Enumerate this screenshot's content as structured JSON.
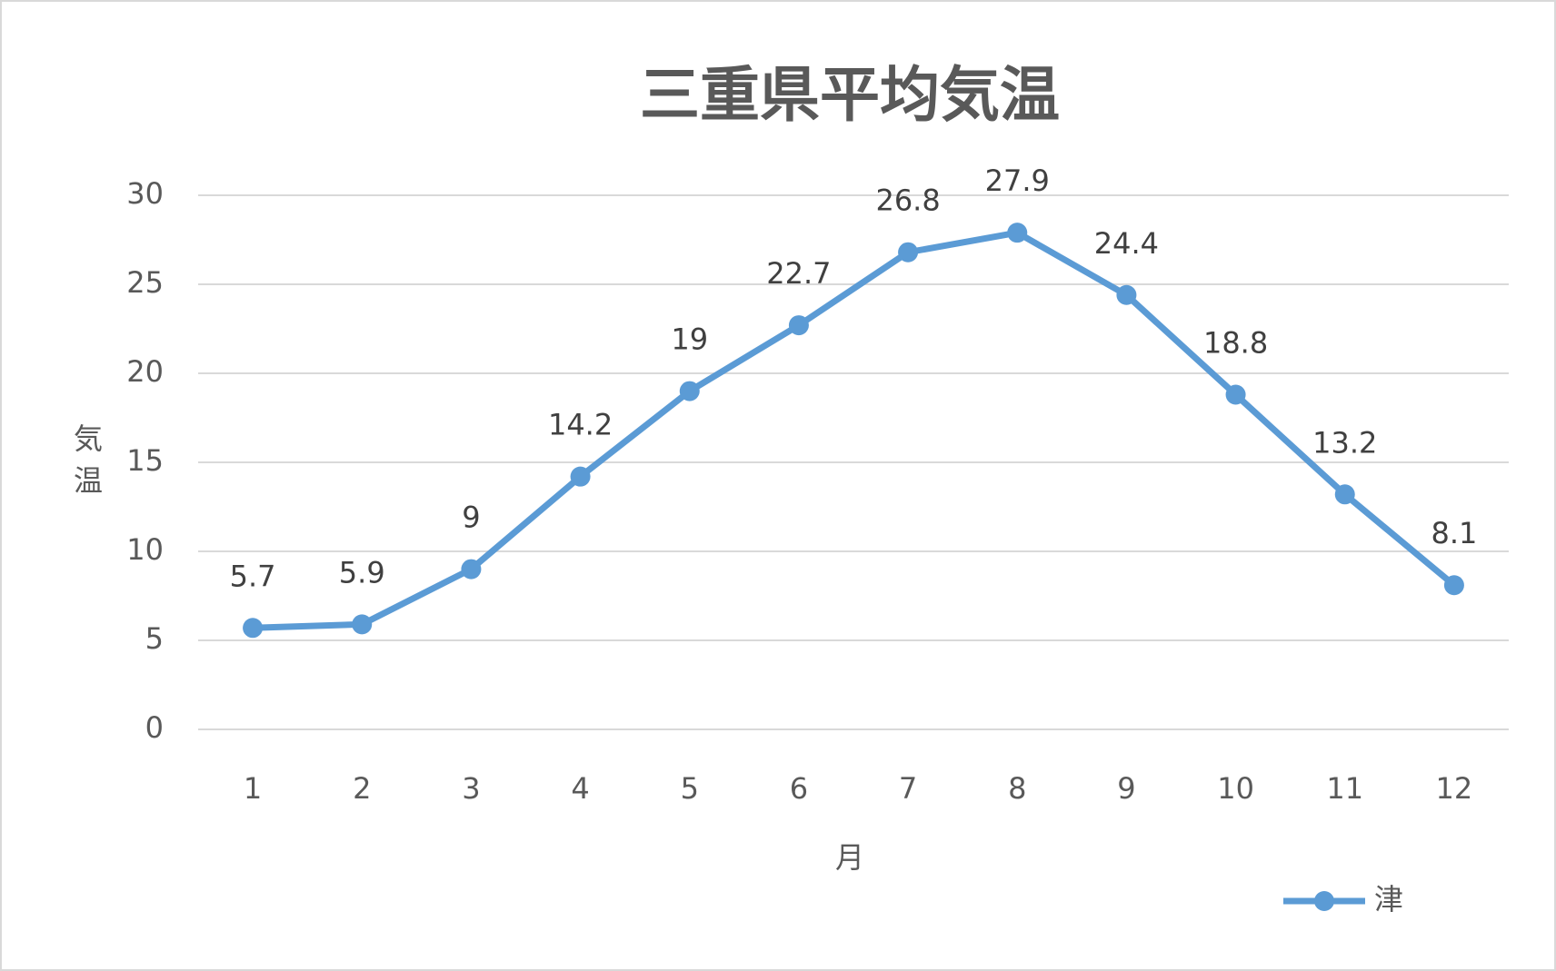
{
  "chart_data": {
    "type": "line",
    "title": "三重県平均気温",
    "x_label": "月",
    "y_label": "気温",
    "categories": [
      "1",
      "2",
      "3",
      "4",
      "5",
      "6",
      "7",
      "8",
      "9",
      "10",
      "11",
      "12"
    ],
    "series": [
      {
        "name": "津",
        "color": "#5b9bd5",
        "values": [
          5.7,
          5.9,
          9,
          14.2,
          19,
          22.7,
          26.8,
          27.9,
          24.4,
          18.8,
          13.2,
          8.1
        ]
      }
    ],
    "ylim": [
      0,
      30
    ],
    "yticks": [
      0,
      5,
      10,
      15,
      20,
      25,
      30
    ],
    "grid": true,
    "legend": "bottom-right",
    "data_labels": true
  }
}
